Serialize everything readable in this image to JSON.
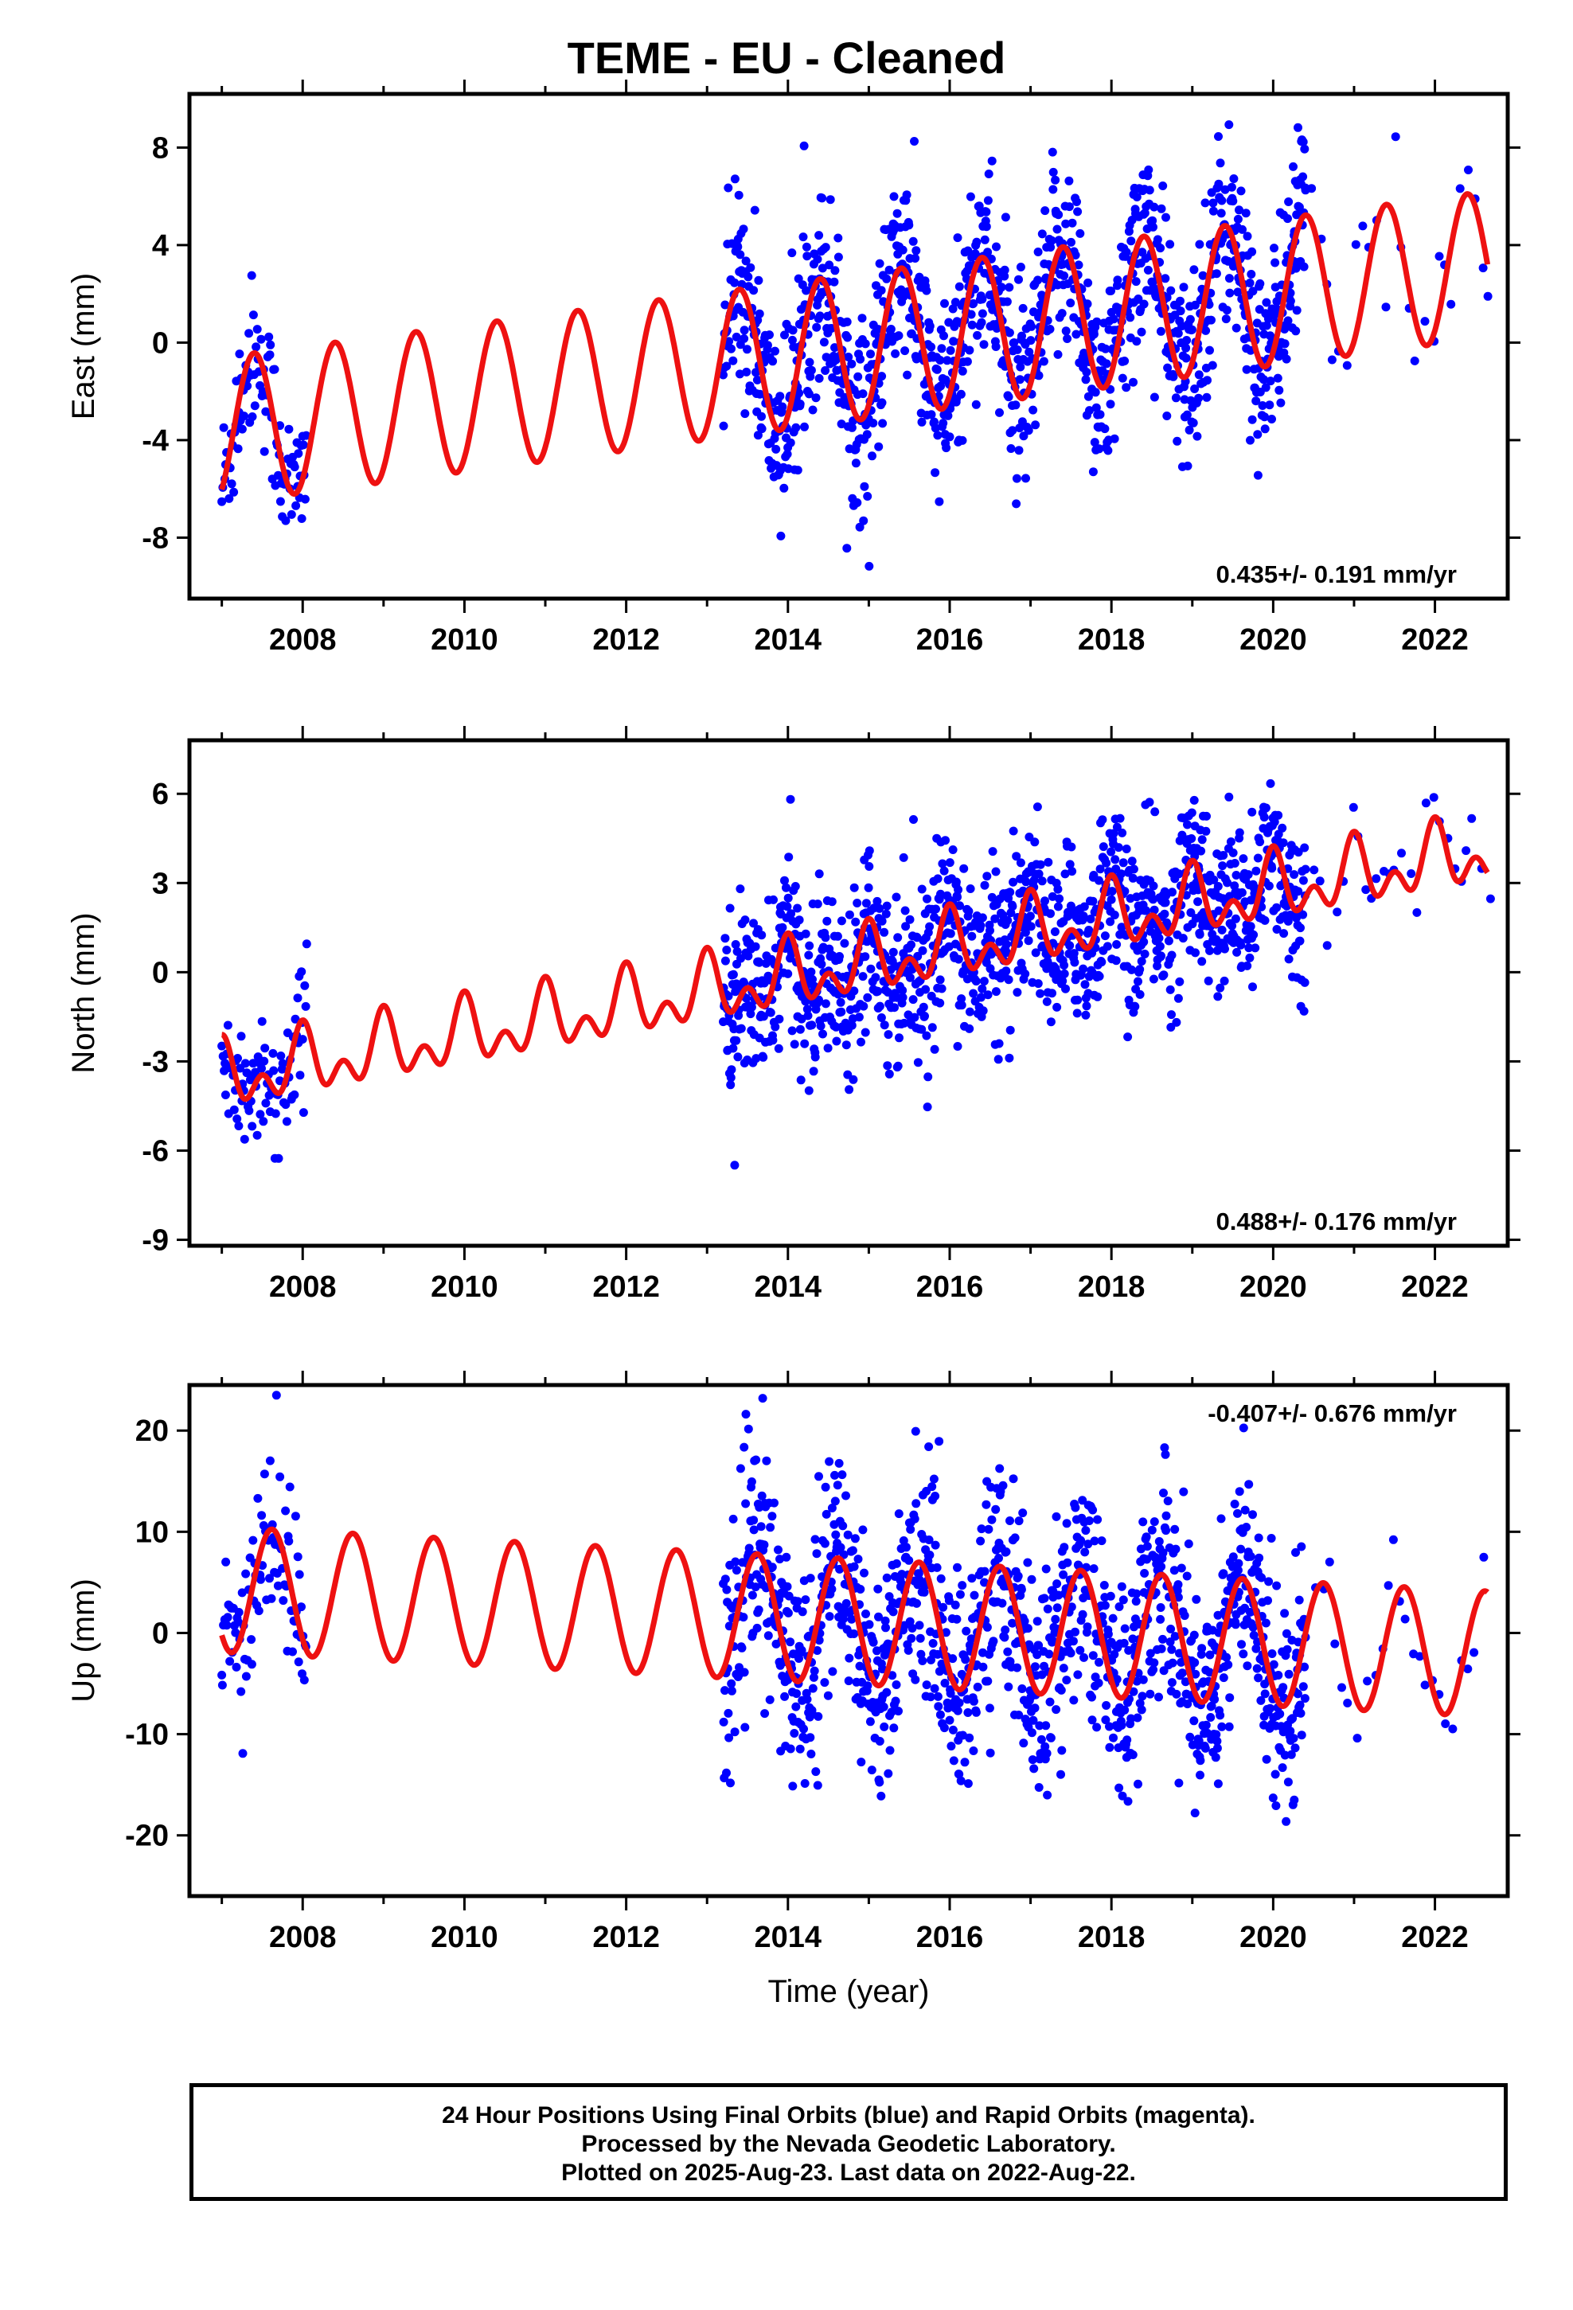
{
  "title": "TEME  - EU - Cleaned",
  "colors": {
    "points": "#0000ff",
    "fit": "#ee1111",
    "frame": "#000000"
  },
  "footer": {
    "line1": "24 Hour Positions Using Final Orbits (blue) and Rapid Orbits (magenta).",
    "line2": "Processed by the Nevada Geodetic Laboratory.",
    "line3": "Plotted on 2025-Aug-23. Last data on 2022-Aug-22."
  },
  "chart_data": [
    {
      "type": "scatter",
      "title": "",
      "ylabel": "East (mm)",
      "xlabel": "",
      "xlim": [
        2006.6,
        2022.9
      ],
      "ylim": [
        -10.5,
        10.2
      ],
      "xticks": [
        "2008",
        "2010",
        "2012",
        "2014",
        "2016",
        "2018",
        "2020",
        "2022"
      ],
      "yticks": [
        "8",
        "4",
        "0",
        "-4",
        "-8"
      ],
      "rate_text": "0.435+/- 0.191 mm/yr",
      "rate_position": "bottom-right",
      "fit": {
        "start": 2007.0,
        "end": 2022.65,
        "offset_at_start": -3.6,
        "trend_mm_per_yr": 0.435,
        "amplitude": 3.0,
        "peak_phase_year_fraction": 0.4
      },
      "observations": [
        {
          "from": 2007.0,
          "to": 2008.05,
          "step": 0.011,
          "spread": 1.6
        },
        {
          "from": 2013.2,
          "to": 2020.4,
          "step": 0.006,
          "spread": 2.0
        },
        {
          "from": 2020.4,
          "to": 2022.7,
          "step": 0.09,
          "spread": 1.4
        }
      ]
    },
    {
      "type": "scatter",
      "title": "",
      "ylabel": "North (mm)",
      "xlabel": "",
      "xlim": [
        2006.6,
        2022.9
      ],
      "ylim": [
        -9.2,
        7.8
      ],
      "xticks": [
        "2008",
        "2010",
        "2012",
        "2014",
        "2016",
        "2018",
        "2020",
        "2022"
      ],
      "yticks": [
        "6",
        "3",
        "0",
        "-3",
        "-6",
        "-9"
      ],
      "rate_text": "0.488+/- 0.176 mm/yr",
      "rate_position": "bottom-right",
      "fit": {
        "start": 2007.0,
        "end": 2022.65,
        "offset_at_start": -3.6,
        "trend_mm_per_yr": 0.488,
        "amplitude": 0.8,
        "peak_phase_year_fraction": 0.0,
        "semiannual_amplitude": 0.7
      },
      "observations": [
        {
          "from": 2007.0,
          "to": 2008.05,
          "step": 0.012,
          "spread": 1.1
        },
        {
          "from": 2013.2,
          "to": 2020.4,
          "step": 0.006,
          "spread": 1.4
        },
        {
          "from": 2020.4,
          "to": 2022.7,
          "step": 0.09,
          "spread": 0.8
        }
      ]
    },
    {
      "type": "scatter",
      "title": "",
      "ylabel": "Up (mm)",
      "xlabel": "Time (year)",
      "xlim": [
        2006.6,
        2022.9
      ],
      "ylim": [
        -26.0,
        24.5
      ],
      "xticks": [
        "2008",
        "2010",
        "2012",
        "2014",
        "2016",
        "2018",
        "2020",
        "2022"
      ],
      "yticks": [
        "20",
        "10",
        "0",
        "-10",
        "-20"
      ],
      "rate_text": "-0.407+/- 0.676 mm/yr",
      "rate_position": "top-right",
      "fit": {
        "start": 2007.0,
        "end": 2022.65,
        "offset_at_start": 4.3,
        "trend_mm_per_yr": -0.407,
        "amplitude": 6.2,
        "peak_phase_year_fraction": 0.62
      },
      "observations": [
        {
          "from": 2007.0,
          "to": 2008.05,
          "step": 0.012,
          "spread": 5.0
        },
        {
          "from": 2013.2,
          "to": 2020.4,
          "step": 0.006,
          "spread": 5.5
        },
        {
          "from": 2020.4,
          "to": 2022.7,
          "step": 0.09,
          "spread": 3.5
        }
      ]
    }
  ]
}
